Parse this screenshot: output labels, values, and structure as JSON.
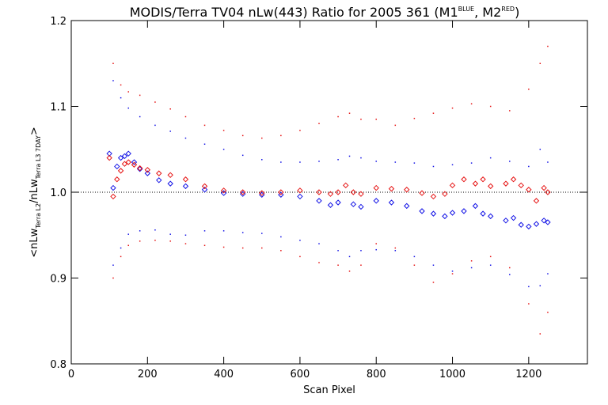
{
  "chart_data": {
    "type": "scatter",
    "title_main": "MODIS/Terra TV04 nLw(443) Ratio for 2005 361 (M1",
    "title_sup1": "BLUE",
    "title_mid": ", M2",
    "title_sup2": "RED",
    "title_end": ")",
    "xlabel": "Scan Pixel",
    "ylabel_parts": [
      "<nLw",
      "Terra L2",
      "/nLw",
      "Terra L3 7DAY",
      ">"
    ],
    "xlim": [
      0,
      1354
    ],
    "ylim": [
      0.8,
      1.2
    ],
    "x_ticks": [
      0,
      200,
      400,
      600,
      800,
      1000,
      1200
    ],
    "y_ticks": [
      0.8,
      0.9,
      1.0,
      1.1,
      1.2
    ],
    "y_tick_labels": [
      "0.8",
      "0.9",
      "1.0",
      "1.1",
      "1.2"
    ],
    "reference_line": 1.0,
    "colors": {
      "blue": "#1414e6",
      "red": "#e61414",
      "axis": "#000000"
    },
    "series": [
      {
        "color": "blue",
        "marker": "diamond",
        "x": [
          100,
          110,
          120,
          130,
          140,
          150,
          165,
          180,
          200,
          230,
          260,
          300,
          350,
          400,
          450,
          500,
          550,
          600,
          650,
          680,
          700,
          740,
          760,
          800,
          840,
          880,
          920,
          950,
          980,
          1000,
          1030,
          1060,
          1080,
          1100,
          1140,
          1160,
          1180,
          1200,
          1220,
          1240,
          1250
        ],
        "values": [
          1.045,
          1.005,
          1.03,
          1.04,
          1.042,
          1.045,
          1.035,
          1.027,
          1.022,
          1.014,
          1.01,
          1.007,
          1.003,
          0.999,
          0.998,
          0.997,
          0.997,
          0.995,
          0.99,
          0.985,
          0.988,
          0.986,
          0.983,
          0.99,
          0.988,
          0.984,
          0.978,
          0.975,
          0.972,
          0.976,
          0.978,
          0.984,
          0.975,
          0.972,
          0.967,
          0.97,
          0.962,
          0.96,
          0.963,
          0.967,
          0.965
        ]
      },
      {
        "color": "red",
        "marker": "diamond",
        "x": [
          100,
          110,
          120,
          130,
          140,
          150,
          165,
          180,
          200,
          230,
          260,
          300,
          350,
          400,
          450,
          500,
          550,
          600,
          650,
          680,
          700,
          720,
          740,
          760,
          800,
          840,
          880,
          920,
          950,
          980,
          1000,
          1030,
          1060,
          1080,
          1100,
          1140,
          1160,
          1180,
          1200,
          1220,
          1240,
          1250
        ],
        "values": [
          1.04,
          0.995,
          1.015,
          1.025,
          1.033,
          1.035,
          1.032,
          1.028,
          1.026,
          1.022,
          1.02,
          1.015,
          1.007,
          1.002,
          1.0,
          0.999,
          1.0,
          1.002,
          1.0,
          0.998,
          1.0,
          1.008,
          1.0,
          0.998,
          1.005,
          1.004,
          1.003,
          0.999,
          0.995,
          0.998,
          1.008,
          1.015,
          1.01,
          1.015,
          1.007,
          1.01,
          1.015,
          1.008,
          1.003,
          0.99,
          1.005,
          1.0
        ]
      },
      {
        "color": "blue",
        "marker": "dot",
        "x": [
          110,
          130,
          150,
          180,
          220,
          260,
          300,
          350,
          400,
          450,
          500,
          550,
          600,
          650,
          700,
          730,
          760,
          800,
          850,
          900,
          950,
          1000,
          1050,
          1100,
          1150,
          1200,
          1230,
          1250
        ],
        "values": [
          1.13,
          1.11,
          1.098,
          1.088,
          1.078,
          1.071,
          1.063,
          1.056,
          1.05,
          1.043,
          1.038,
          1.035,
          1.035,
          1.036,
          1.038,
          1.042,
          1.04,
          1.036,
          1.035,
          1.034,
          1.03,
          1.032,
          1.034,
          1.04,
          1.036,
          1.03,
          1.05,
          1.035
        ]
      },
      {
        "color": "blue",
        "marker": "dot",
        "x": [
          110,
          130,
          150,
          180,
          220,
          260,
          300,
          350,
          400,
          450,
          500,
          550,
          600,
          650,
          700,
          730,
          760,
          800,
          850,
          900,
          950,
          1000,
          1050,
          1100,
          1150,
          1200,
          1230,
          1250
        ],
        "values": [
          0.915,
          0.935,
          0.951,
          0.955,
          0.956,
          0.951,
          0.95,
          0.955,
          0.955,
          0.953,
          0.952,
          0.948,
          0.944,
          0.94,
          0.932,
          0.925,
          0.932,
          0.933,
          0.932,
          0.925,
          0.915,
          0.908,
          0.912,
          0.915,
          0.904,
          0.89,
          0.891,
          0.905
        ]
      },
      {
        "color": "red",
        "marker": "dot",
        "x": [
          110,
          130,
          150,
          180,
          220,
          260,
          300,
          350,
          400,
          450,
          500,
          550,
          600,
          650,
          700,
          730,
          760,
          800,
          850,
          900,
          950,
          1000,
          1050,
          1100,
          1150,
          1200,
          1230,
          1250
        ],
        "values": [
          1.15,
          1.125,
          1.117,
          1.113,
          1.105,
          1.097,
          1.088,
          1.078,
          1.072,
          1.066,
          1.063,
          1.066,
          1.072,
          1.08,
          1.088,
          1.092,
          1.085,
          1.085,
          1.078,
          1.086,
          1.092,
          1.098,
          1.103,
          1.1,
          1.095,
          1.12,
          1.15,
          1.17
        ]
      },
      {
        "color": "red",
        "marker": "dot",
        "x": [
          110,
          130,
          150,
          180,
          220,
          260,
          300,
          350,
          400,
          450,
          500,
          550,
          600,
          650,
          700,
          730,
          760,
          800,
          850,
          900,
          950,
          1000,
          1050,
          1100,
          1150,
          1200,
          1230,
          1250
        ],
        "values": [
          0.9,
          0.925,
          0.938,
          0.943,
          0.944,
          0.943,
          0.94,
          0.938,
          0.936,
          0.935,
          0.935,
          0.932,
          0.925,
          0.918,
          0.915,
          0.908,
          0.915,
          0.94,
          0.935,
          0.915,
          0.895,
          0.905,
          0.92,
          0.925,
          0.912,
          0.87,
          0.835,
          0.86
        ]
      }
    ]
  }
}
